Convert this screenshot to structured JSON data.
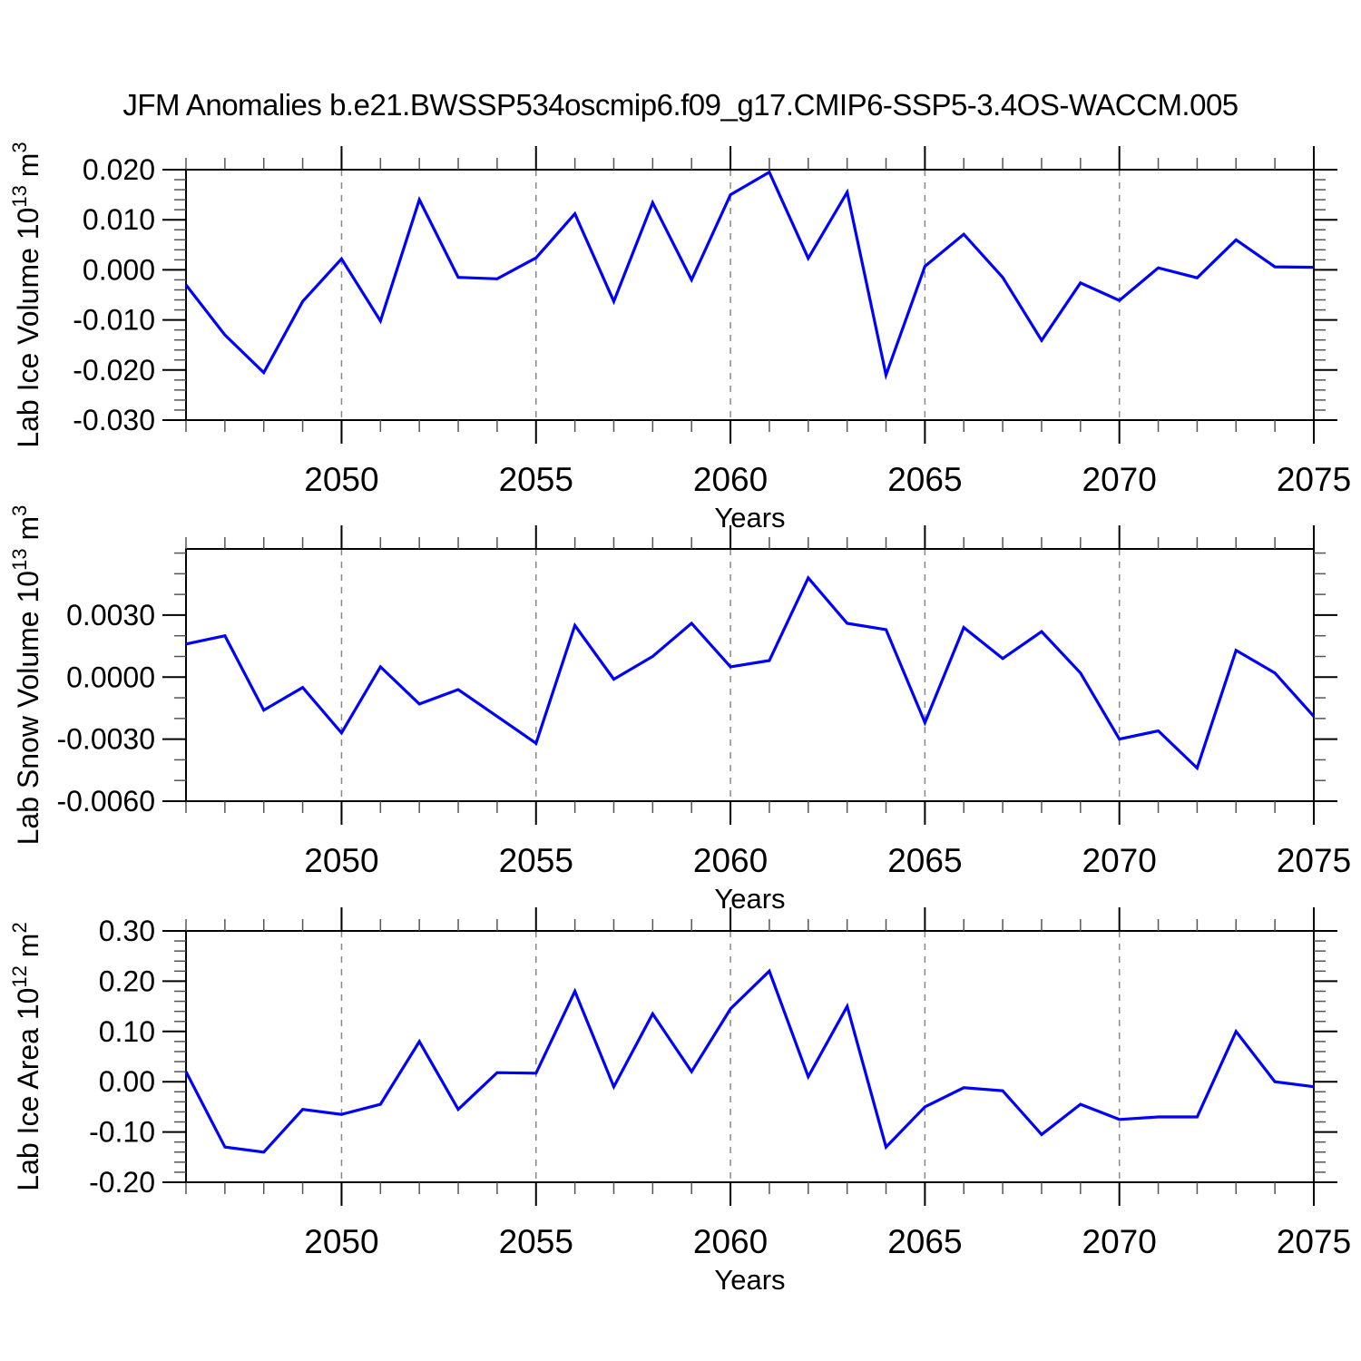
{
  "title": "JFM Anomalies b.e21.BWSSP534oscmip6.f09_g17.CMIP6-SSP5-3.4OS-WACCM.005",
  "colors": {
    "line": "#0000ff",
    "frame": "#000000",
    "grid": "#888888",
    "major_tick": "#000000",
    "minor_tick": "#555555",
    "text": "#000000",
    "background": "#ffffff"
  },
  "x_axis": {
    "label": "Years",
    "range": [
      2046,
      2075
    ],
    "major_ticks": [
      2050,
      2055,
      2060,
      2065,
      2070,
      2075
    ],
    "major_tick_labels": [
      "2050",
      "2055",
      "2060",
      "2065",
      "2070",
      "2075"
    ],
    "minor_step": 1,
    "years": [
      2046,
      2047,
      2048,
      2049,
      2050,
      2051,
      2052,
      2053,
      2054,
      2055,
      2056,
      2057,
      2058,
      2059,
      2060,
      2061,
      2062,
      2063,
      2064,
      2065,
      2066,
      2067,
      2068,
      2069,
      2070,
      2071,
      2072,
      2073,
      2074,
      2075
    ]
  },
  "chart_data": [
    {
      "type": "line",
      "name": "lab-ice-volume",
      "ylabel_text": "Lab Ice Volume 10^13 m^3",
      "ylabel_segments": [
        {
          "t": "Lab Ice Volume 10"
        },
        {
          "t": "13",
          "sup": true
        },
        {
          "t": " m"
        },
        {
          "t": "3",
          "sup": true
        }
      ],
      "xlabel": "Years",
      "ylim": [
        -0.03,
        0.02
      ],
      "ytick_values": [
        0.02,
        0.01,
        0.0,
        -0.01,
        -0.02,
        -0.03
      ],
      "ytick_labels": [
        "0.020",
        "0.010",
        "0.000",
        "-0.010",
        "-0.020",
        "-0.030"
      ],
      "y_minor_step": 0.002,
      "values": [
        -0.003,
        -0.013,
        -0.0205,
        -0.0063,
        0.0022,
        -0.0102,
        0.014,
        -0.0015,
        -0.0018,
        0.0024,
        0.0112,
        -0.0063,
        0.0134,
        -0.002,
        0.015,
        0.0195,
        0.0023,
        0.0155,
        -0.021,
        0.0007,
        0.0071,
        -0.0015,
        -0.0141,
        -0.0026,
        -0.0061,
        0.0004,
        -0.0016,
        0.006,
        0.0006,
        0.0005
      ]
    },
    {
      "type": "line",
      "name": "lab-snow-volume",
      "ylabel_text": "Lab Snow Volume 10^13 m^3",
      "ylabel_segments": [
        {
          "t": "Lab Snow Volume 10"
        },
        {
          "t": "13",
          "sup": true
        },
        {
          "t": " m"
        },
        {
          "t": "3",
          "sup": true
        }
      ],
      "xlabel": "Years",
      "ylim": [
        -0.006,
        0.0062
      ],
      "ytick_values": [
        0.003,
        0.0,
        -0.003,
        -0.006
      ],
      "ytick_labels": [
        "0.0030",
        "0.0000",
        "-0.0030",
        "-0.0060"
      ],
      "y_minor_step": 0.001,
      "values": [
        0.0016,
        0.002,
        -0.0016,
        -0.0005,
        -0.0027,
        0.0005,
        -0.0013,
        -0.0006,
        -0.0019,
        -0.0032,
        0.0025,
        -0.0001,
        0.001,
        0.0026,
        0.0005,
        0.0008,
        0.0048,
        0.0026,
        0.0023,
        -0.0022,
        0.0024,
        0.0009,
        0.0022,
        0.0002,
        -0.003,
        -0.0026,
        -0.0044,
        0.0013,
        0.0002,
        -0.0019
      ]
    },
    {
      "type": "line",
      "name": "lab-ice-area",
      "ylabel_text": "Lab Ice Area 10^12 m^2",
      "ylabel_segments": [
        {
          "t": "Lab Ice Area 10"
        },
        {
          "t": "12",
          "sup": true
        },
        {
          "t": " m"
        },
        {
          "t": "2",
          "sup": true
        }
      ],
      "xlabel": "Years",
      "ylim": [
        -0.2,
        0.3
      ],
      "ytick_values": [
        0.3,
        0.2,
        0.1,
        0.0,
        -0.1,
        -0.2
      ],
      "ytick_labels": [
        "0.30",
        "0.20",
        "0.10",
        "0.00",
        "-0.10",
        "-0.20"
      ],
      "y_minor_step": 0.02,
      "values": [
        0.02,
        -0.13,
        -0.14,
        -0.055,
        -0.065,
        -0.045,
        0.08,
        -0.055,
        0.018,
        0.017,
        0.18,
        -0.01,
        0.135,
        0.02,
        0.145,
        0.22,
        0.01,
        0.15,
        -0.13,
        -0.05,
        -0.012,
        -0.018,
        -0.105,
        -0.045,
        -0.075,
        -0.07,
        -0.07,
        0.1,
        0.0,
        -0.01
      ]
    }
  ]
}
